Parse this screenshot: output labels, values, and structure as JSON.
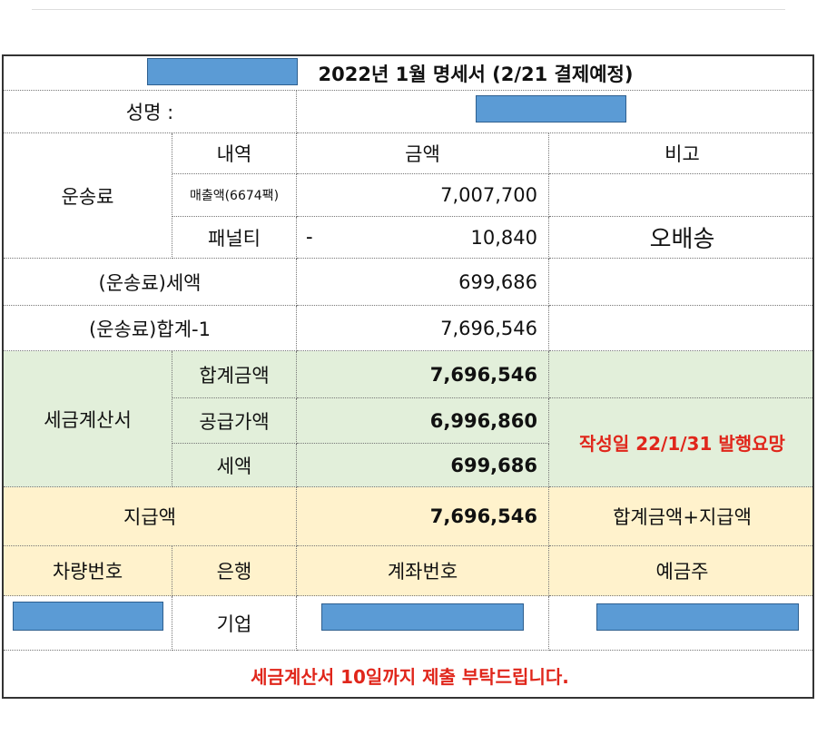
{
  "header": {
    "title": "2022년 1월 명세서 (2/21 결제예정)"
  },
  "name": {
    "label": "성명 :"
  },
  "freight": {
    "label": "운송료",
    "columns": [
      "내역",
      "금액",
      "비고"
    ],
    "sales": {
      "item": "매출액(6674팩)",
      "amount": "7,007,700"
    },
    "penalty": {
      "item": "패널티",
      "sign": "-",
      "amount": "10,840",
      "note": "오배송"
    }
  },
  "freight_tax": {
    "label": "(운송료)세액",
    "amount": "699,686"
  },
  "freight_total": {
    "label": "(운송료)합계-1",
    "amount": "7,696,546"
  },
  "tax_invoice": {
    "label": "세금계산서",
    "rows": [
      {
        "item": "합계금액",
        "amount": "7,696,546"
      },
      {
        "item": "공급가액",
        "amount": "6,996,860"
      },
      {
        "item": "세액",
        "amount": "699,686"
      }
    ],
    "note": "작성일 22/1/31 발행요망"
  },
  "payment": {
    "label": "지급액",
    "amount": "7,696,546",
    "note": "합계금액+지급액"
  },
  "account": {
    "columns": [
      "차량번호",
      "은행",
      "계좌번호",
      "예금주"
    ],
    "bank": "기업"
  },
  "footer": {
    "notice": "세금계산서 10일까지 제출 부탁드립니다."
  }
}
